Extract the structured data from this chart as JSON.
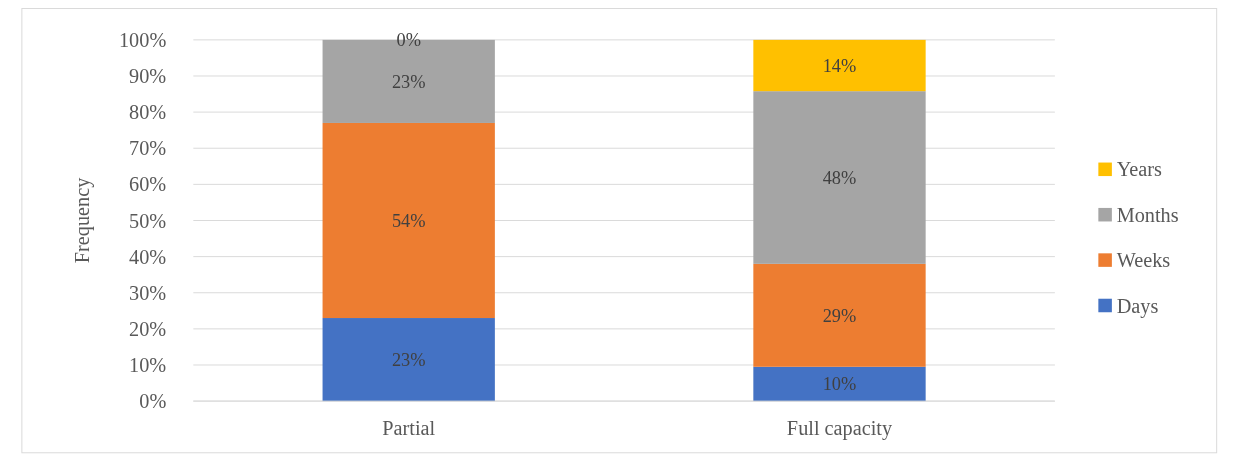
{
  "chart_data": {
    "type": "bar",
    "stacked": true,
    "ylabel": "Frequency",
    "categories": [
      "Partial",
      "Full capacity"
    ],
    "series": [
      {
        "name": "Days",
        "color": "#4472c4",
        "values": [
          23,
          9.5
        ],
        "value_labels": [
          "23%",
          "10%"
        ]
      },
      {
        "name": "Weeks",
        "color": "#ed7d31",
        "values": [
          54,
          28.5
        ],
        "value_labels": [
          "54%",
          "29%"
        ]
      },
      {
        "name": "Months",
        "color": "#a5a5a5",
        "values": [
          23,
          47.8
        ],
        "value_labels": [
          "23%",
          "48%"
        ]
      },
      {
        "name": "Years",
        "color": "#ffc000",
        "values": [
          0,
          14.2
        ],
        "value_labels": [
          "0%",
          "14%"
        ]
      }
    ],
    "ylim": [
      0,
      100
    ],
    "yticks": [
      {
        "value": 0,
        "label": "0%"
      },
      {
        "value": 10,
        "label": "10%"
      },
      {
        "value": 20,
        "label": "20%"
      },
      {
        "value": 30,
        "label": "30%"
      },
      {
        "value": 40,
        "label": "40%"
      },
      {
        "value": 50,
        "label": "50%"
      },
      {
        "value": 60,
        "label": "60%"
      },
      {
        "value": 70,
        "label": "70%"
      },
      {
        "value": 80,
        "label": "80%"
      },
      {
        "value": 90,
        "label": "90%"
      },
      {
        "value": 100,
        "label": "100%"
      }
    ],
    "grid": "y",
    "legend": "right"
  }
}
